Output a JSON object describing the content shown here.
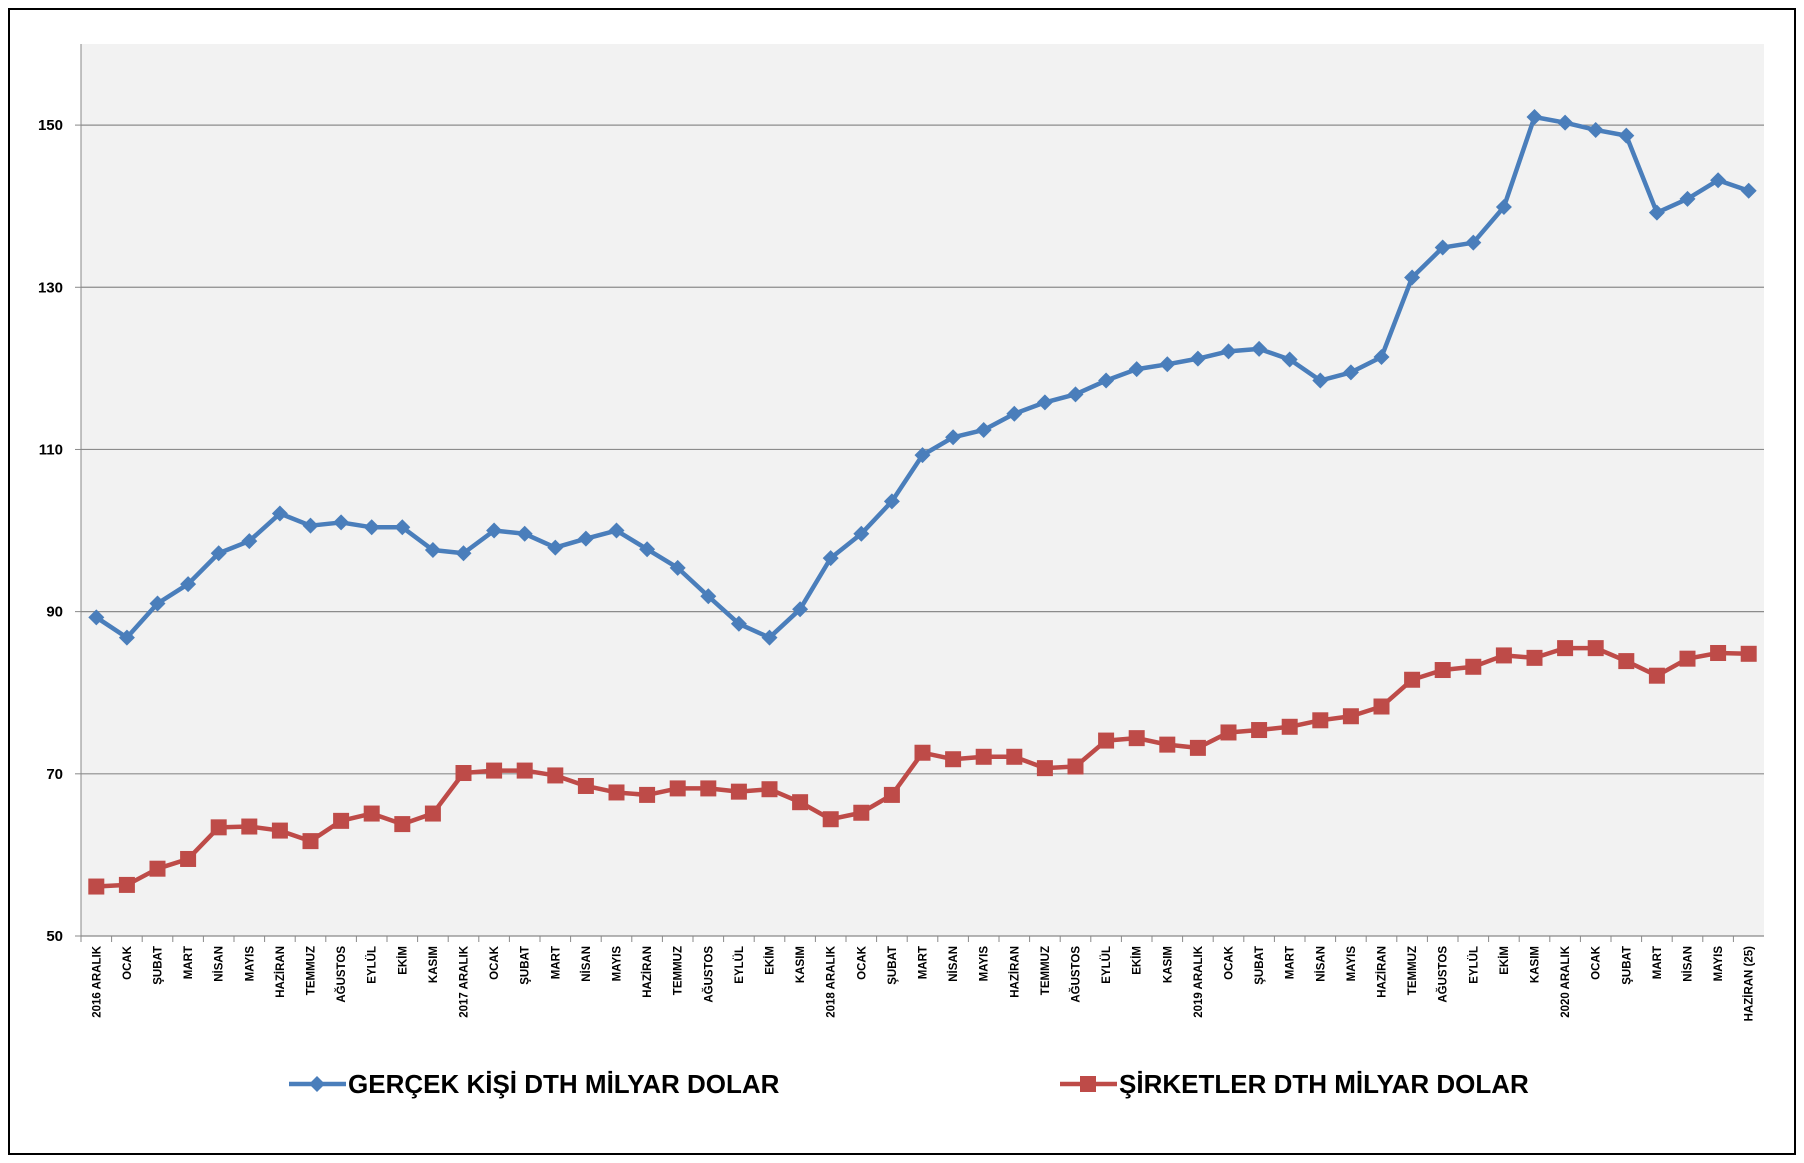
{
  "chart_data": {
    "type": "line",
    "categories": [
      "2016 ARALIK",
      "OCAK",
      "ŞUBAT",
      "MART",
      "NİSAN",
      "MAYIS",
      "HAZİRAN",
      "TEMMUZ",
      "AĞUSTOS",
      "EYLÜL",
      "EKİM",
      "KASIM",
      "2017 ARALIK",
      "OCAK",
      "ŞUBAT",
      "MART",
      "NİSAN",
      "MAYIS",
      "HAZİRAN",
      "TEMMUZ",
      "AĞUSTOS",
      "EYLÜL",
      "EKİM",
      "KASIM",
      "2018 ARALIK",
      "OCAK",
      "ŞUBAT",
      "MART",
      "NİSAN",
      "MAYIS",
      "HAZİRAN",
      "TEMMUZ",
      "AĞUSTOS",
      "EYLÜL",
      "EKİM",
      "KASIM",
      "2019 ARALIK",
      "OCAK",
      "ŞUBAT",
      "MART",
      "NİSAN",
      "MAYIS",
      "HAZİRAN",
      "TEMMUZ",
      "AĞUSTOS",
      "EYLÜL",
      "EKİM",
      "KASIM",
      "2020 ARALIK",
      "OCAK",
      "ŞUBAT",
      "MART",
      "NİSAN",
      "MAYIS",
      "HAZİRAN (25)"
    ],
    "series": [
      {
        "name": "GERÇEK KİŞİ DTH MİLYAR DOLAR",
        "color": "#4a7ebb",
        "marker": "diamond",
        "values": [
          89.3,
          86.8,
          91.0,
          93.4,
          97.2,
          98.7,
          102.1,
          100.6,
          101.0,
          100.4,
          100.4,
          97.6,
          97.2,
          100.0,
          99.6,
          97.9,
          99.0,
          100.0,
          97.7,
          95.4,
          91.9,
          88.5,
          86.8,
          90.3,
          96.6,
          99.6,
          103.6,
          109.3,
          111.5,
          112.4,
          114.4,
          115.8,
          116.8,
          118.5,
          119.9,
          120.5,
          121.2,
          122.1,
          122.4,
          121.1,
          118.5,
          119.5,
          121.4,
          131.2,
          134.9,
          135.5,
          139.9,
          151.0,
          150.3,
          149.4,
          148.7,
          139.2,
          140.9,
          143.2,
          141.9
        ]
      },
      {
        "name": "ŞİRKETLER DTH MİLYAR DOLAR",
        "color": "#be4b48",
        "marker": "square",
        "values": [
          56.1,
          56.3,
          58.3,
          59.5,
          63.4,
          63.5,
          63.0,
          61.7,
          64.2,
          65.1,
          63.8,
          65.1,
          70.1,
          70.4,
          70.4,
          69.8,
          68.5,
          67.7,
          67.4,
          68.2,
          68.2,
          67.8,
          68.1,
          66.5,
          64.4,
          65.2,
          67.4,
          72.6,
          71.8,
          72.1,
          72.1,
          70.7,
          70.9,
          74.1,
          74.4,
          73.6,
          73.2,
          75.1,
          75.4,
          75.8,
          76.6,
          77.1,
          78.3,
          81.6,
          82.8,
          83.2,
          84.6,
          84.3,
          85.5,
          85.5,
          83.9,
          82.1,
          84.2,
          84.9,
          84.8
        ]
      }
    ],
    "ylim": [
      50,
      160
    ],
    "yticks": [
      50,
      70,
      90,
      110,
      130,
      150
    ],
    "grid": true,
    "legend": "bottom"
  }
}
